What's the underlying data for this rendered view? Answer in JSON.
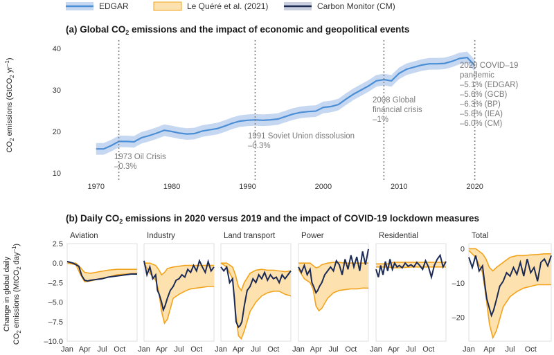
{
  "legend": [
    {
      "label": "EDGAR",
      "color": "#4a8fd6",
      "band": "#c6d7f1"
    },
    {
      "label": "Le Quéré et al. (2021)",
      "color": "#f2a31b",
      "band": "#fde2b0"
    },
    {
      "label": "Carbon Monitor (CM)",
      "color": "#1b2a55",
      "band": "#c9cfdf"
    }
  ],
  "colors": {
    "edgar_line": "#4a8fd6",
    "edgar_band": "#c6d7f1",
    "lq_line": "#f2a31b",
    "lq_band": "#fde2b0",
    "cm_line": "#1b2a55",
    "event_line": "#808080"
  },
  "panel_a": {
    "title_pre": "(a) Global CO",
    "title_sub": "2",
    "title_post": " emissions and the impact of economic and geopolitical events",
    "ylabel_pre": "CO",
    "ylabel_sub": "2",
    "ylabel_mid": " emissions (GtCO",
    "ylabel_sub2": "2",
    "ylabel_post": " yr",
    "ylabel_sup": "–1",
    "ylabel_end": ")",
    "events": [
      {
        "year": 1973,
        "lines": [
          "1973 Oil Crisis",
          "–0.3%"
        ]
      },
      {
        "year": 1991,
        "lines": [
          "1991 Soviet Union dissolusion",
          "–0.3%"
        ]
      },
      {
        "year": 2008,
        "lines": [
          "2008 Global",
          "financial crisis",
          "–1%"
        ]
      },
      {
        "year": 2020,
        "lines": [
          "2020 COVID–19",
          "pandemic",
          "–5.1% (EDGAR)",
          "–5.6% (GCB)",
          "–6.3% (BP)",
          "–5.8% (IEA)",
          "–6.0% (CM)"
        ]
      }
    ]
  },
  "panel_b": {
    "title_pre": "(b) Daily CO",
    "title_sub": "2",
    "title_post": " emissions in 2020 versus 2019 and the impact of COVID-19 lockdown measures",
    "ylabel_line1": "Change in global daily",
    "ylabel_line2_pre": "CO",
    "ylabel_line2_sub": "2",
    "ylabel_line2_mid": " emissions (MtCO",
    "ylabel_line2_sub2": "2",
    "ylabel_line2_post": " day",
    "ylabel_line2_sup": "–1",
    "ylabel_line2_end": ")",
    "panels": [
      "Aviation",
      "Industry",
      "Land transport",
      "Power",
      "Residential",
      "Total"
    ]
  },
  "chart_data": [
    {
      "type": "line",
      "title": "(a) Global CO2 emissions and the impact of economic and geopolitical events",
      "xlabel": "",
      "ylabel": "CO2 emissions (GtCO2 yr–1)",
      "xlim": [
        1966,
        2030
      ],
      "ylim": [
        10,
        42
      ],
      "xticks": [
        1970,
        1980,
        1990,
        2000,
        2010,
        2020
      ],
      "yticks": [
        10,
        20,
        30,
        40
      ],
      "x": [
        1970,
        1971,
        1972,
        1973,
        1974,
        1975,
        1976,
        1977,
        1978,
        1979,
        1980,
        1981,
        1982,
        1983,
        1984,
        1985,
        1986,
        1987,
        1988,
        1989,
        1990,
        1991,
        1992,
        1993,
        1994,
        1995,
        1996,
        1997,
        1998,
        1999,
        2000,
        2001,
        2002,
        2003,
        2004,
        2005,
        2006,
        2007,
        2008,
        2009,
        2010,
        2011,
        2012,
        2013,
        2014,
        2015,
        2016,
        2017,
        2018,
        2019,
        2020
      ],
      "series": [
        {
          "name": "EDGAR",
          "values": [
            15.8,
            15.8,
            16.6,
            17.6,
            17.6,
            17.5,
            18.5,
            19.0,
            19.6,
            20.3,
            20.0,
            19.6,
            19.4,
            19.5,
            20.1,
            20.4,
            20.7,
            21.3,
            22.0,
            22.5,
            22.7,
            22.8,
            22.7,
            22.8,
            23.0,
            23.6,
            24.2,
            24.6,
            24.8,
            24.9,
            25.8,
            26.0,
            26.5,
            27.8,
            29.0,
            30.0,
            31.0,
            32.2,
            32.5,
            32.2,
            34.0,
            35.0,
            35.5,
            36.0,
            36.3,
            36.3,
            36.4,
            36.9,
            37.6,
            37.8,
            35.9
          ],
          "band": 1.4
        }
      ],
      "events": [
        {
          "year": 1973,
          "label": "1973 Oil Crisis",
          "change": "–0.3%"
        },
        {
          "year": 1991,
          "label": "1991 Soviet Union dissolusion",
          "change": "–0.3%"
        },
        {
          "year": 2008,
          "label": "2008 Global financial crisis",
          "change": "–1%"
        },
        {
          "year": 2020,
          "label": "2020 COVID–19 pandemic",
          "changes": [
            "–5.1% (EDGAR)",
            "–5.6% (GCB)",
            "–6.3% (BP)",
            "–5.8% (IEA)",
            "–6.0% (CM)"
          ]
        }
      ]
    },
    {
      "type": "line",
      "title": "(b) Daily CO2 emissions in 2020 versus 2019 and the impact of COVID-19 lockdown measures",
      "ylabel": "Change in global daily CO2 emissions (MtCO2 day–1)",
      "x_ticks": [
        "Jan",
        "Apr",
        "Jul",
        "Oct"
      ],
      "x_tick_months": [
        0,
        3,
        6,
        9
      ],
      "subplots": [
        {
          "name": "Aviation",
          "ylim": [
            -10,
            2.5
          ],
          "yticks": [
            2.5,
            0.0,
            -2.5,
            -5.0,
            -7.5,
            -10.0
          ],
          "ytick_labels": [
            "2.5",
            "0.0",
            "–2.5",
            "–5.0",
            "–7.5",
            "–10.0"
          ],
          "lq_x": [
            0,
            1.5,
            2.3,
            3.0,
            4.0,
            5.5,
            7.0,
            8.5,
            10.0,
            12.0
          ],
          "lq_upper": [
            0,
            0,
            -0.6,
            -1.2,
            -1.3,
            -1.1,
            -0.9,
            -0.8,
            -0.8,
            -0.8
          ],
          "lq_lower": [
            0,
            -0.2,
            -1.5,
            -2.4,
            -2.3,
            -2.0,
            -1.8,
            -1.5,
            -1.4,
            -1.3
          ],
          "cm_x": [
            0,
            1,
            2,
            2.5,
            3,
            3.5,
            4,
            5,
            6,
            7,
            8,
            9,
            10,
            11,
            12
          ],
          "cm_values": [
            0.2,
            0,
            -0.4,
            -1.6,
            -2.2,
            -2.3,
            -2.2,
            -2.1,
            -2.0,
            -1.8,
            -1.7,
            -1.6,
            -1.5,
            -1.4,
            -1.4
          ]
        },
        {
          "name": "Industry",
          "ylim": [
            -10,
            2.5
          ],
          "lq_x": [
            0,
            1.0,
            2.0,
            2.5,
            3.0,
            3.5,
            4.0,
            5.0,
            6.0,
            7.0,
            8.0,
            9.0,
            10.0,
            11.0,
            12.0
          ],
          "lq_upper": [
            0,
            0,
            -0.3,
            -0.8,
            -1.5,
            -1.2,
            -0.7,
            -0.5,
            -0.4,
            -0.3,
            -0.3,
            -0.3,
            -0.3,
            -0.3,
            -0.3
          ],
          "lq_lower": [
            0,
            -1.3,
            -2.2,
            -3.5,
            -6.2,
            -7.7,
            -7.2,
            -4.5,
            -4.0,
            -3.6,
            -3.3,
            -3.2,
            -3.1,
            -3.0,
            -3.0
          ],
          "cm_x": [
            0,
            0.5,
            1.0,
            1.5,
            2.0,
            2.3,
            2.6,
            3.0,
            3.3,
            3.6,
            4.0,
            4.5,
            5.0,
            5.5,
            6.0,
            6.5,
            7.0,
            7.5,
            8.0,
            8.5,
            9.0,
            9.5,
            10.0,
            10.5,
            11.0,
            11.5,
            12.0
          ],
          "cm_values": [
            0.3,
            -1.5,
            -0.5,
            -2.0,
            -1.5,
            -3.5,
            -4.0,
            -5.0,
            -6.0,
            -5.5,
            -4.5,
            -3.5,
            -3.0,
            -2.2,
            -2.0,
            -1.5,
            -1.8,
            -0.8,
            -1.2,
            -0.3,
            -1.0,
            0.3,
            -0.5,
            -1.2,
            0.2,
            -1.0,
            -0.5
          ]
        },
        {
          "name": "Land transport",
          "ylim": [
            -10,
            2.5
          ],
          "lq_x": [
            0,
            1.0,
            2.0,
            2.5,
            3.0,
            3.5,
            4.0,
            5.0,
            6.0,
            7.0,
            8.0,
            9.0,
            10.0,
            11.0,
            12.0
          ],
          "lq_upper": [
            0,
            0,
            -0.5,
            -1.5,
            -3.0,
            -3.5,
            -2.5,
            -1.3,
            -0.9,
            -0.8,
            -0.9,
            -0.9,
            -1.0,
            -1.1,
            -1.0
          ],
          "lq_lower": [
            0,
            -0.5,
            -2.0,
            -6.0,
            -9.3,
            -9.7,
            -8.7,
            -6.2,
            -5.0,
            -4.2,
            -3.8,
            -3.6,
            -3.6,
            -4.0,
            -4.2
          ],
          "cm_x": [
            0,
            0.5,
            1.0,
            1.5,
            2.0,
            2.3,
            2.6,
            3.0,
            3.3,
            3.6,
            4.0,
            4.5,
            5.0,
            5.5,
            6.0,
            6.5,
            7.0,
            7.5,
            8.0,
            8.5,
            9.0,
            9.5,
            10.0,
            10.5,
            11.0,
            11.5,
            12.0
          ],
          "cm_values": [
            -0.5,
            -1.0,
            -0.5,
            -2.5,
            -2.0,
            -4.5,
            -7.5,
            -8.2,
            -8.0,
            -7.5,
            -5.5,
            -3.5,
            -3.0,
            -2.0,
            -2.5,
            -1.5,
            -2.0,
            -1.2,
            -2.2,
            -1.5,
            -2.0,
            -1.8,
            -2.5,
            -1.5,
            -2.0,
            -1.5,
            -1.0
          ]
        },
        {
          "name": "Power",
          "ylim": [
            -10,
            2.5
          ],
          "lq_x": [
            0,
            1.0,
            2.0,
            2.5,
            3.0,
            3.5,
            4.0,
            5.0,
            6.0,
            7.0,
            8.0,
            9.0,
            10.0,
            11.0,
            12.0
          ],
          "lq_upper": [
            0,
            0,
            0,
            -0.3,
            -0.6,
            -0.5,
            -0.2,
            0,
            0.1,
            0.1,
            0,
            0,
            0,
            0,
            0
          ],
          "lq_lower": [
            -0.8,
            -2.0,
            -2.5,
            -3.3,
            -5.5,
            -6.1,
            -5.8,
            -4.5,
            -3.8,
            -3.5,
            -3.4,
            -3.3,
            -3.3,
            -3.2,
            -3.2
          ],
          "cm_x": [
            0,
            0.5,
            1.0,
            1.5,
            2.0,
            2.3,
            2.6,
            3.0,
            3.3,
            3.6,
            4.0,
            4.5,
            5.0,
            5.5,
            6.0,
            6.5,
            7.0,
            7.5,
            8.0,
            8.5,
            9.0,
            9.5,
            10.0,
            10.5,
            11.0,
            11.5,
            12.0
          ],
          "cm_values": [
            -0.5,
            -1.2,
            -0.3,
            -1.5,
            -0.8,
            -2.5,
            -3.0,
            -3.8,
            -3.5,
            -3.0,
            -2.5,
            -1.5,
            -1.0,
            -0.5,
            -1.0,
            0.3,
            -0.2,
            -1.5,
            0.5,
            -0.8,
            1.0,
            -0.5,
            0.8,
            -1.0,
            1.5,
            -0.2,
            1.8
          ]
        },
        {
          "name": "Residential",
          "ylim": [
            -10,
            2.5
          ],
          "lq_x": [
            0,
            2.0,
            3.0,
            4.0,
            6.0,
            8.0,
            10.0,
            12.0
          ],
          "lq_upper": [
            -0.1,
            -0.1,
            0.1,
            0.1,
            0.1,
            0.1,
            0.1,
            0.1
          ],
          "lq_lower": [
            -0.5,
            -0.5,
            -0.6,
            -0.6,
            -0.5,
            -0.5,
            -0.5,
            -0.5
          ],
          "cm_x": [
            0,
            0.4,
            0.8,
            1.2,
            1.6,
            2.0,
            2.4,
            2.8,
            3.2,
            3.6,
            4.0,
            4.5,
            5.0,
            5.5,
            6.0,
            6.5,
            7.0,
            7.5,
            8.0,
            8.5,
            9.0,
            9.5,
            10.0,
            10.5,
            11.0,
            11.5,
            12.0
          ],
          "cm_values": [
            -0.8,
            -1.8,
            -0.3,
            -1.5,
            0.2,
            -1.0,
            0.5,
            -0.8,
            0.0,
            -0.5,
            -0.3,
            -0.6,
            0.0,
            -0.4,
            -0.2,
            -0.5,
            0.1,
            -0.3,
            -0.8,
            0.3,
            -0.5,
            -1.8,
            -0.3,
            0.5,
            1.0,
            -0.5,
            0.2
          ]
        },
        {
          "name": "Total",
          "ylim": [
            -27,
            1.5
          ],
          "yticks": [
            0,
            -10,
            -20
          ],
          "ytick_labels": [
            "0",
            "–10",
            "–20"
          ],
          "lq_x": [
            0,
            1.0,
            2.0,
            2.5,
            3.0,
            3.5,
            4.0,
            5.0,
            6.0,
            7.0,
            8.0,
            9.0,
            10.0,
            11.0,
            12.0
          ],
          "lq_upper": [
            0,
            0,
            -1.5,
            -3.0,
            -5.5,
            -6.5,
            -5.5,
            -4.0,
            -2.5,
            -2.0,
            -2.0,
            -1.8,
            -1.7,
            -1.5,
            -1.5
          ],
          "lq_lower": [
            -0.5,
            -2.5,
            -7.0,
            -14.0,
            -22.0,
            -26.0,
            -24.0,
            -17.0,
            -14.0,
            -12.5,
            -11.5,
            -11.0,
            -10.5,
            -10.5,
            -10.5
          ],
          "cm_x": [
            0,
            0.5,
            1.0,
            1.5,
            2.0,
            2.3,
            2.6,
            3.0,
            3.3,
            3.6,
            4.0,
            4.5,
            5.0,
            5.5,
            6.0,
            6.5,
            7.0,
            7.5,
            8.0,
            8.5,
            9.0,
            9.5,
            10.0,
            10.5,
            11.0,
            11.5,
            12.0
          ],
          "cm_values": [
            -2.5,
            -5.5,
            -2.0,
            -6.5,
            -5.0,
            -10.0,
            -14.5,
            -17.5,
            -19.5,
            -18.0,
            -15.0,
            -11.0,
            -9.5,
            -7.0,
            -8.0,
            -5.5,
            -7.5,
            -4.0,
            -8.0,
            -3.0,
            -7.0,
            -5.5,
            -9.5,
            -4.0,
            -3.0,
            -5.0,
            -2.0
          ]
        }
      ]
    }
  ]
}
